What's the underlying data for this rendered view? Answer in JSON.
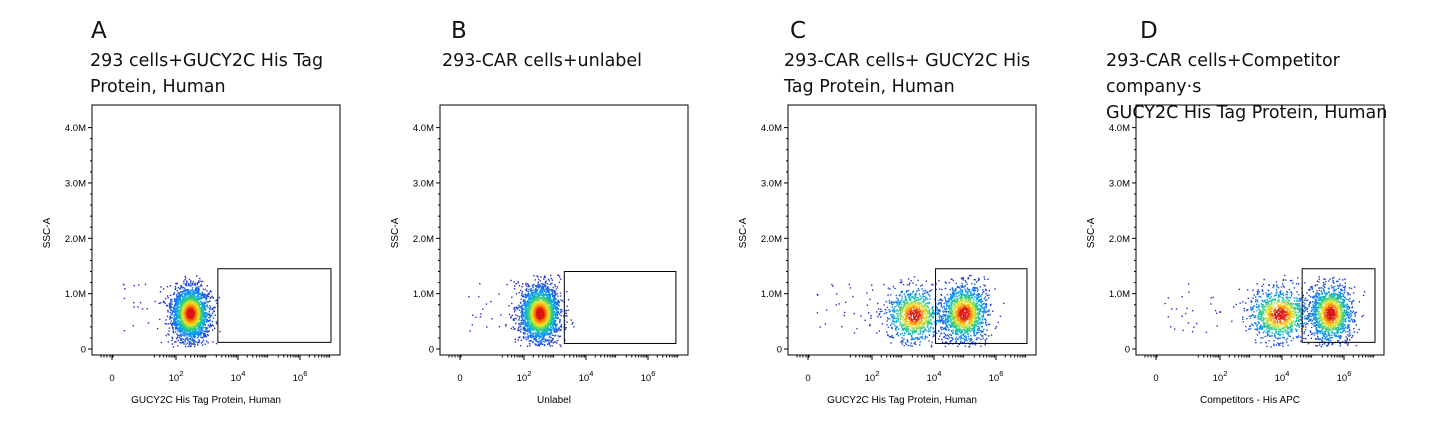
{
  "chart_data": [
    {
      "type": "scatter",
      "panel": "A",
      "title": "293 cells+GUCY2C His Tag\nProtein, Human",
      "xlabel": "GUCY2C His Tag Protein, Human",
      "ylabel": "SSC-A",
      "x_ticks": [
        "0",
        "10^2",
        "10^4",
        "10^6"
      ],
      "y_ticks": [
        "0",
        "1.0M",
        "2.0M",
        "3.0M",
        "4.0M"
      ],
      "ylim": [
        0,
        4.3
      ],
      "x_scale": "biexponential",
      "gate": {
        "x_log10": [
          3.35,
          7.0
        ],
        "y_M": [
          0.12,
          1.45
        ]
      },
      "populations": [
        {
          "x_log10": 2.45,
          "y_M": 0.65,
          "spread_x": 0.3,
          "spread_y": 0.24,
          "fraction": 1.0
        }
      ]
    },
    {
      "type": "scatter",
      "panel": "B",
      "title": "293-CAR cells+unlabel",
      "xlabel": "Unlabel",
      "ylabel": "SSC-A",
      "x_ticks": [
        "0",
        "10^2",
        "10^4",
        "10^6"
      ],
      "y_ticks": [
        "0",
        "1.0M",
        "2.0M",
        "3.0M",
        "4.0M"
      ],
      "ylim": [
        0,
        4.3
      ],
      "x_scale": "biexponential",
      "gate": {
        "x_log10": [
          3.3,
          6.9
        ],
        "y_M": [
          0.1,
          1.4
        ]
      },
      "populations": [
        {
          "x_log10": 2.5,
          "y_M": 0.65,
          "spread_x": 0.32,
          "spread_y": 0.25,
          "fraction": 1.0
        }
      ]
    },
    {
      "type": "scatter",
      "panel": "C",
      "title": "293-CAR cells+ GUCY2C His\nTag Protein, Human",
      "xlabel": "GUCY2C His Tag Protein, Human",
      "ylabel": "SSC-A",
      "x_ticks": [
        "0",
        "10^2",
        "10^4",
        "10^6"
      ],
      "y_ticks": [
        "0",
        "1.0M",
        "2.0M",
        "3.0M",
        "4.0M"
      ],
      "ylim": [
        0,
        4.3
      ],
      "x_scale": "biexponential",
      "gate": {
        "x_log10": [
          4.05,
          7.0
        ],
        "y_M": [
          0.1,
          1.45
        ]
      },
      "populations": [
        {
          "x_log10": 3.35,
          "y_M": 0.62,
          "spread_x": 0.45,
          "spread_y": 0.24,
          "fraction": 0.42
        },
        {
          "x_log10": 4.95,
          "y_M": 0.65,
          "spread_x": 0.38,
          "spread_y": 0.26,
          "fraction": 0.58
        }
      ]
    },
    {
      "type": "scatter",
      "panel": "D",
      "title": "293-CAR cells+Competitor company·s\nGUCY2C His Tag Protein, Human",
      "xlabel": "Competitors - His APC",
      "ylabel": "SSC-A",
      "x_ticks": [
        "0",
        "10^2",
        "10^4",
        "10^6"
      ],
      "y_ticks": [
        "0",
        "1.0M",
        "2.0M",
        "3.0M",
        "4.0M"
      ],
      "ylim": [
        0,
        4.3
      ],
      "x_scale": "biexponential",
      "gate": {
        "x_log10": [
          4.65,
          7.0
        ],
        "y_M": [
          0.12,
          1.45
        ]
      },
      "populations": [
        {
          "x_log10": 3.9,
          "y_M": 0.63,
          "spread_x": 0.5,
          "spread_y": 0.24,
          "fraction": 0.45
        },
        {
          "x_log10": 5.55,
          "y_M": 0.65,
          "spread_x": 0.35,
          "spread_y": 0.26,
          "fraction": 0.55
        }
      ]
    }
  ]
}
